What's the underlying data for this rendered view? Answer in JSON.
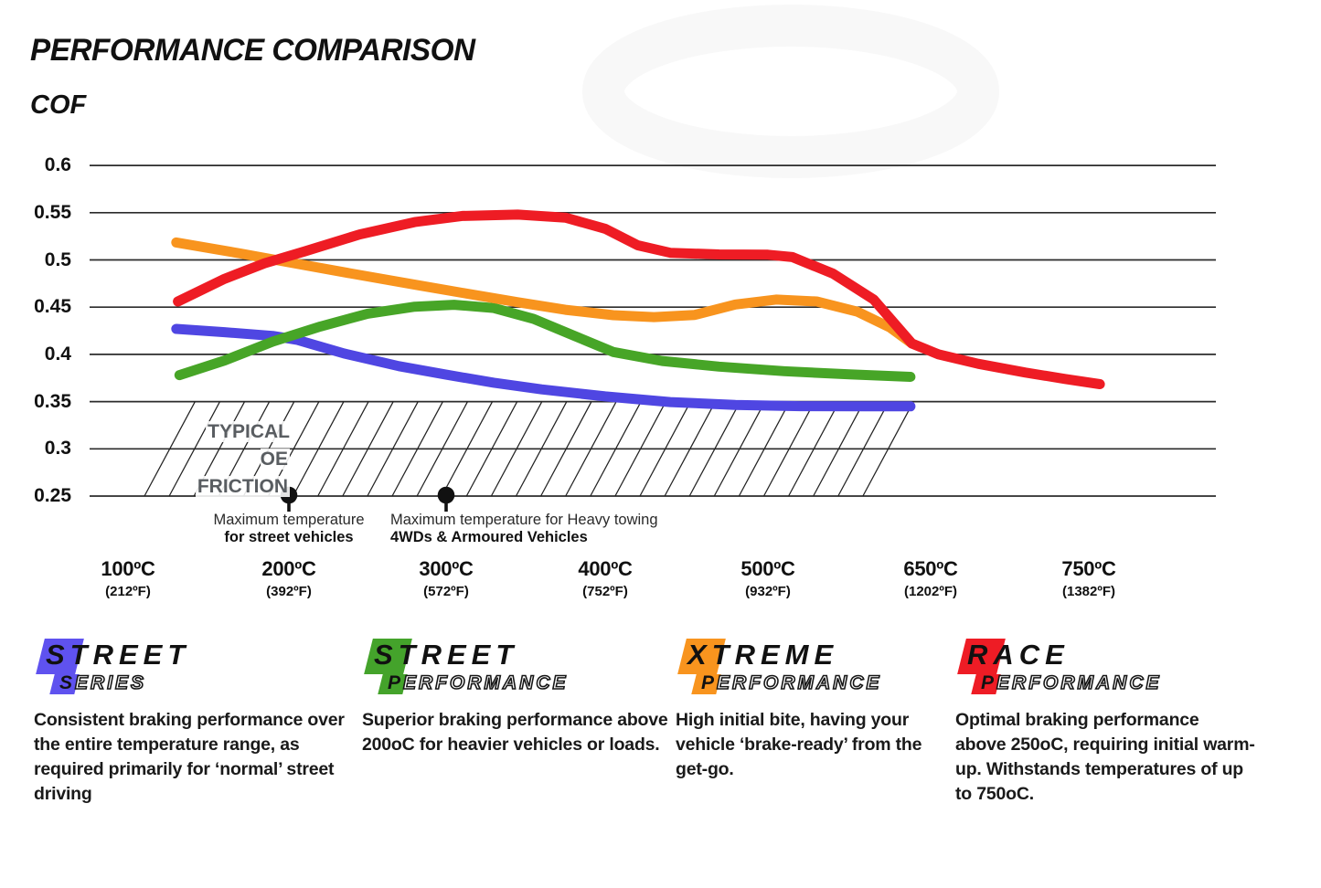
{
  "title": "PERFORMANCE COMPARISON",
  "y_axis_title": "COF",
  "chart_data": {
    "type": "line",
    "title": "PERFORMANCE COMPARISON",
    "ylabel": "COF",
    "ylim": [
      0.25,
      0.6
    ],
    "grid": "horizontal",
    "legend_position": "bottom",
    "y_tick_labels": [
      "0.6",
      "0.55",
      "0.5",
      "0.45",
      "0.4",
      "0.35",
      "0.3",
      "0.25"
    ],
    "x_ticks": [
      {
        "celsius": "100ºC",
        "fahrenheit": "(212ºF)",
        "value_c": 100
      },
      {
        "celsius": "200ºC",
        "fahrenheit": "(392ºF)",
        "value_c": 200
      },
      {
        "celsius": "300ºC",
        "fahrenheit": "(572ºF)",
        "value_c": 300
      },
      {
        "celsius": "400ºC",
        "fahrenheit": "(752ºF)",
        "value_c": 400
      },
      {
        "celsius": "500ºC",
        "fahrenheit": "(932ºF)",
        "value_c": 500
      },
      {
        "celsius": "650ºC",
        "fahrenheit": "(1202ºF)",
        "value_c": 650
      },
      {
        "celsius": "750ºC",
        "fahrenheit": "(1382ºF)",
        "value_c": 750
      }
    ],
    "series": [
      {
        "name": "Street Series",
        "color": "#4f46e2",
        "points": [
          [
            0.3,
            0.427
          ],
          [
            0.6,
            0.4235
          ],
          [
            0.9,
            0.4195
          ],
          [
            1.05,
            0.4155
          ],
          [
            1.35,
            0.401
          ],
          [
            1.7,
            0.3875
          ],
          [
            2.0,
            0.3785
          ],
          [
            2.3,
            0.37
          ],
          [
            2.6,
            0.363
          ],
          [
            3.0,
            0.3555
          ],
          [
            3.4,
            0.3495
          ],
          [
            3.8,
            0.3465
          ],
          [
            4.2,
            0.3452
          ],
          [
            4.6,
            0.345
          ],
          [
            4.876,
            0.345
          ]
        ]
      },
      {
        "name": "Street Performance",
        "color": "#47a527",
        "points": [
          [
            0.32,
            0.378
          ],
          [
            0.6,
            0.3935
          ],
          [
            0.9,
            0.4135
          ],
          [
            1.2,
            0.4295
          ],
          [
            1.5,
            0.443
          ],
          [
            1.8,
            0.4505
          ],
          [
            2.05,
            0.4525
          ],
          [
            2.3,
            0.449
          ],
          [
            2.55,
            0.4375
          ],
          [
            2.8,
            0.42
          ],
          [
            3.05,
            0.4025
          ],
          [
            3.35,
            0.393
          ],
          [
            3.7,
            0.387
          ],
          [
            4.1,
            0.3822
          ],
          [
            4.5,
            0.3788
          ],
          [
            4.876,
            0.3762
          ]
        ]
      },
      {
        "name": "Xtreme Performance",
        "color": "#f8941e",
        "points": [
          [
            0.3,
            0.5185
          ],
          [
            0.7,
            0.5068
          ],
          [
            1.0,
            0.4975
          ],
          [
            1.4,
            0.4855
          ],
          [
            1.8,
            0.4738
          ],
          [
            2.1,
            0.4652
          ],
          [
            2.45,
            0.4552
          ],
          [
            2.75,
            0.4472
          ],
          [
            3.05,
            0.4415
          ],
          [
            3.3,
            0.4395
          ],
          [
            3.55,
            0.4418
          ],
          [
            3.8,
            0.4528
          ],
          [
            4.05,
            0.458
          ],
          [
            4.3,
            0.456
          ],
          [
            4.55,
            0.4452
          ],
          [
            4.75,
            0.4285
          ],
          [
            4.885,
            0.4115
          ]
        ]
      },
      {
        "name": "Race Performance",
        "color": "#ee1c24",
        "points": [
          [
            0.31,
            0.456
          ],
          [
            0.6,
            0.48
          ],
          [
            0.85,
            0.4965
          ],
          [
            1.1,
            0.509
          ],
          [
            1.45,
            0.527
          ],
          [
            1.8,
            0.54
          ],
          [
            2.1,
            0.5465
          ],
          [
            2.45,
            0.548
          ],
          [
            2.75,
            0.5448
          ],
          [
            3.0,
            0.533
          ],
          [
            3.2,
            0.5155
          ],
          [
            3.4,
            0.5075
          ],
          [
            3.7,
            0.5058
          ],
          [
            4.0,
            0.5055
          ],
          [
            4.15,
            0.503
          ],
          [
            4.4,
            0.4855
          ],
          [
            4.65,
            0.458
          ],
          [
            4.885,
            0.4115
          ],
          [
            5.05,
            0.4
          ],
          [
            5.3,
            0.39
          ],
          [
            5.6,
            0.3808
          ],
          [
            5.85,
            0.374
          ],
          [
            6.07,
            0.3685
          ]
        ]
      }
    ],
    "oe_band": {
      "label_line1": "TYPICAL OE",
      "label_line2": "FRICTION",
      "cof_top": 0.35,
      "cof_bottom": 0.25
    },
    "markers": [
      {
        "tick_index": 1,
        "line1": "Maximum temperature",
        "line2": "for street vehicles"
      },
      {
        "tick_index": 2,
        "line1": "Maximum temperature for Heavy towing",
        "line2": "4WDs & Armoured Vehicles"
      }
    ]
  },
  "legend": [
    {
      "top_word": "STREET",
      "sub_first": "S",
      "sub_rest": "ERIES",
      "color": "#5f52ef",
      "desc_lines": [
        "Consistent braking performance over",
        "the entire temperature range, as",
        "required primarily for ‘normal’ street",
        "driving"
      ]
    },
    {
      "top_word": "STREET",
      "sub_first": "P",
      "sub_rest": "ERFORMANCE",
      "color": "#44a32b",
      "desc_lines": [
        "Superior braking performance above",
        "200oC for heavier vehicles or loads."
      ]
    },
    {
      "top_word": "XTREME",
      "sub_first": "P",
      "sub_rest": "ERFORMANCE",
      "color": "#f8941e",
      "desc_lines": [
        "High initial bite, having your",
        "vehicle ‘brake-ready’ from the",
        "get-go."
      ]
    },
    {
      "top_word": "RACE",
      "sub_first": "P",
      "sub_rest": "ERFORMANCE",
      "color": "#ee1c25",
      "desc_lines": [
        "Optimal braking performance",
        "above 250oC, requiring initial warm-",
        "up. Withstands temperatures of up",
        "to 750oC."
      ]
    }
  ]
}
